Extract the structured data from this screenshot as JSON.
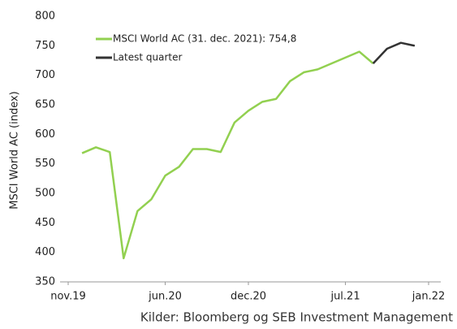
{
  "chart_data": {
    "type": "line",
    "ylabel": "MSCI World AC (index)",
    "source": "Kilder: Bloomberg og SEB Investment Management",
    "x": [
      "2019-12",
      "2020-01",
      "2020-02",
      "2020-03",
      "2020-04",
      "2020-05",
      "2020-06",
      "2020-07",
      "2020-08",
      "2020-09",
      "2020-10",
      "2020-11",
      "2020-12",
      "2021-01",
      "2021-02",
      "2021-03",
      "2021-04",
      "2021-05",
      "2021-06",
      "2021-07",
      "2021-08",
      "2021-09",
      "2021-10",
      "2021-11",
      "2021-12"
    ],
    "series": [
      {
        "name": "MSCI World AC (31. dec. 2021): 754,8",
        "color": "#92d050",
        "values": [
          568,
          578,
          570,
          390,
          470,
          490,
          530,
          545,
          575,
          575,
          570,
          620,
          640,
          655,
          660,
          690,
          705,
          710,
          720,
          730,
          740,
          720,
          null,
          null,
          null
        ]
      },
      {
        "name": "Latest quarter",
        "color": "#333333",
        "values": [
          null,
          null,
          null,
          null,
          null,
          null,
          null,
          null,
          null,
          null,
          null,
          null,
          null,
          null,
          null,
          null,
          null,
          null,
          null,
          null,
          null,
          720,
          745,
          755,
          750
        ]
      }
    ],
    "xlim": [
      "2019-11",
      "2022-01"
    ],
    "xticks": [
      {
        "value": "2019-11",
        "label": "nov.19"
      },
      {
        "value": "2020-06",
        "label": "jun.20"
      },
      {
        "value": "2020-12",
        "label": "dec.20"
      },
      {
        "value": "2021-07",
        "label": "jul.21"
      },
      {
        "value": "2022-01",
        "label": "jan.22"
      }
    ],
    "ylim": [
      350,
      800
    ],
    "yticks": [
      350,
      400,
      450,
      500,
      550,
      600,
      650,
      700,
      750,
      800
    ],
    "legend": "top-left",
    "grid": false
  }
}
